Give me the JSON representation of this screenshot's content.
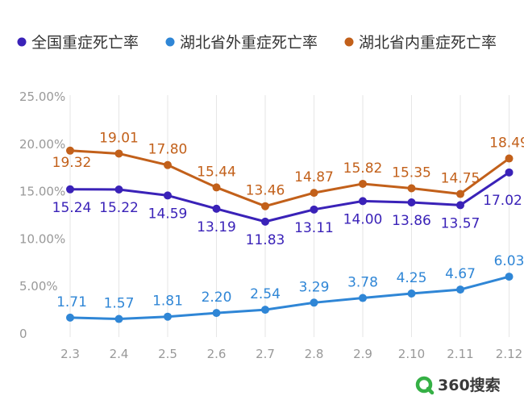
{
  "chart_data": {
    "type": "line",
    "categories": [
      "2.3",
      "2.4",
      "2.5",
      "2.6",
      "2.7",
      "2.8",
      "2.9",
      "2.10",
      "2.11",
      "2.12"
    ],
    "y_tick_labels": [
      "0",
      "5.00%",
      "10.00%",
      "15.00%",
      "20.00%",
      "25.00%"
    ],
    "ylim": [
      0,
      25
    ],
    "grid": "vertical",
    "legend_position": "top",
    "series": [
      {
        "name": "全国重症死亡率",
        "color": "#3a22b8",
        "values": [
          15.24,
          15.22,
          14.59,
          13.19,
          11.83,
          13.11,
          14.0,
          13.86,
          13.57,
          17.02
        ]
      },
      {
        "name": "湖北省外重症死亡率",
        "color": "#2f86d6",
        "values": [
          1.71,
          1.57,
          1.81,
          2.2,
          2.54,
          3.29,
          3.78,
          4.25,
          4.67,
          6.03
        ]
      },
      {
        "name": "湖北省内重症死亡率",
        "color": "#c2601a",
        "values": [
          19.32,
          19.01,
          17.8,
          15.44,
          13.46,
          14.87,
          15.82,
          15.35,
          14.75,
          18.49
        ]
      }
    ]
  },
  "brand": {
    "text": "360搜索",
    "color": "#35b045"
  }
}
